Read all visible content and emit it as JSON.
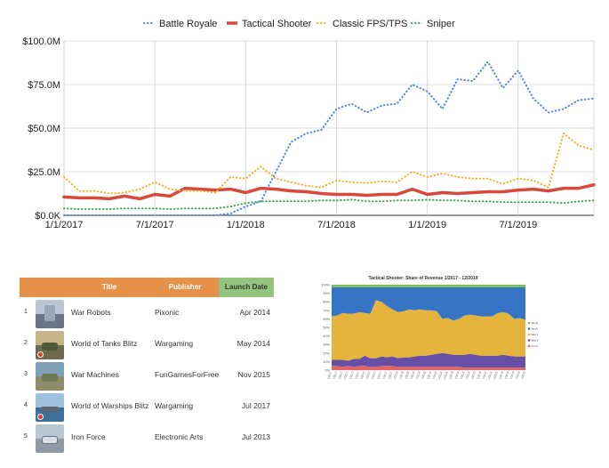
{
  "main_chart_legend": [
    "Battle Royale",
    "Tactical Shooter",
    "Classic FPS/TPS",
    "Sniper"
  ],
  "chart_data": [
    {
      "type": "line",
      "title": "",
      "xlabel": "",
      "ylabel": "",
      "x": [
        "1/1/2017",
        "2/1/2017",
        "3/1/2017",
        "4/1/2017",
        "5/1/2017",
        "6/1/2017",
        "7/1/2017",
        "8/1/2017",
        "9/1/2017",
        "10/1/2017",
        "11/1/2017",
        "12/1/2017",
        "1/1/2018",
        "2/1/2018",
        "3/1/2018",
        "4/1/2018",
        "5/1/2018",
        "6/1/2018",
        "7/1/2018",
        "8/1/2018",
        "9/1/2018",
        "10/1/2018",
        "11/1/2018",
        "12/1/2018",
        "1/1/2019",
        "2/1/2019",
        "3/1/2019",
        "4/1/2019",
        "5/1/2019",
        "6/1/2019",
        "7/1/2019",
        "8/1/2019",
        "9/1/2019",
        "10/1/2019",
        "11/1/2019",
        "12/1/2019"
      ],
      "x_tick_labels": [
        "1/1/2017",
        "7/1/2017",
        "1/1/2018",
        "7/1/2018",
        "1/1/2019",
        "7/1/2019"
      ],
      "y_tick_labels": [
        "$0.0K",
        "$25.0M",
        "$50.0M",
        "$75.0M",
        "$100.0M"
      ],
      "ylim": [
        0,
        100
      ],
      "grid": "vertical",
      "legend_position": "top",
      "series": [
        {
          "name": "Battle Royale",
          "color": "#4a86e8",
          "style": "dotted",
          "values": [
            0,
            0,
            0,
            0,
            0,
            0,
            0,
            0,
            0,
            0,
            0,
            1,
            5,
            8,
            25,
            42,
            47,
            49,
            61,
            64,
            59,
            63,
            64,
            75,
            71,
            61,
            78,
            77,
            88,
            73,
            83,
            67,
            59,
            61,
            66,
            67
          ]
        },
        {
          "name": "Tactical Shooter",
          "color": "#d9483b",
          "style": "solid",
          "values": [
            10.5,
            10,
            10,
            9.5,
            11,
            9.5,
            12,
            11,
            15.5,
            15,
            14.5,
            15,
            13,
            15.5,
            15,
            14,
            13.5,
            12.5,
            12,
            12,
            11.5,
            12,
            12,
            15,
            12,
            13,
            12.5,
            13,
            13.5,
            13.5,
            14.5,
            15,
            14,
            15.5,
            15.5,
            17.5
          ]
        },
        {
          "name": "Classic FPS/TPS",
          "color": "#f6b026",
          "style": "dotted",
          "values": [
            22,
            14,
            14,
            12.5,
            13,
            15,
            19,
            15,
            14,
            14,
            13,
            22,
            21,
            28,
            21,
            19,
            17,
            16,
            20,
            19,
            18.5,
            19.5,
            19,
            25,
            22,
            24,
            22,
            21,
            21,
            18,
            21,
            20,
            16,
            47,
            40,
            37.5
          ]
        },
        {
          "name": "Sniper",
          "color": "#3aa757",
          "style": "dotted",
          "values": [
            4,
            3.5,
            3.5,
            3.5,
            4,
            4,
            4,
            3.5,
            4,
            4,
            4,
            5,
            7,
            8,
            8,
            8,
            8,
            8.5,
            8.5,
            9,
            8,
            8,
            8.5,
            8.5,
            9,
            8.5,
            8.5,
            8,
            8,
            7.5,
            7.5,
            7.5,
            7.5,
            7,
            8,
            8.5
          ]
        }
      ]
    },
    {
      "type": "area",
      "stacked": true,
      "title": "Tactical Shooter: Share of Revenue 1/2017 - 12/2019",
      "y_tick_labels": [
        "0%",
        "10%",
        "20%",
        "30%",
        "40%",
        "50%",
        "60%",
        "70%",
        "80%",
        "90%",
        "100%"
      ],
      "ylim": [
        0,
        100
      ],
      "x": [
        "1/1/2017",
        "2/1/2017",
        "3/1/2017",
        "4/1/2017",
        "5/1/2017",
        "6/1/2017",
        "7/1/2017",
        "8/1/2017",
        "9/1/2017",
        "10/1/2017",
        "11/1/2017",
        "12/1/2017",
        "1/1/2018",
        "2/1/2018",
        "3/1/2018",
        "4/1/2018",
        "5/1/2018",
        "6/1/2018",
        "7/1/2018",
        "8/1/2018",
        "9/1/2018",
        "10/1/2018",
        "11/1/2018",
        "12/1/2018",
        "1/1/2019",
        "2/1/2019",
        "3/1/2019",
        "4/1/2019",
        "5/1/2019",
        "6/1/2019",
        "7/1/2019",
        "8/1/2019",
        "9/1/2019",
        "10/1/2019",
        "11/1/2019",
        "12/1/2019"
      ],
      "legend_position": "right",
      "series": [
        {
          "name": "Iron Force",
          "color": "#e06666",
          "values": [
            5,
            5,
            4,
            5,
            4,
            5,
            5,
            4,
            4,
            5,
            5,
            5,
            4,
            4,
            4,
            4,
            4,
            4,
            4,
            4,
            4,
            4,
            4,
            4,
            3,
            3,
            3,
            3,
            3,
            3,
            3,
            3,
            3,
            3,
            3,
            3
          ]
        },
        {
          "name": "War Machines: 3D Tank Games",
          "color": "#674ea7",
          "values": [
            7,
            7,
            8,
            6,
            9,
            8,
            12,
            10,
            10,
            11,
            10,
            11,
            10,
            11,
            11,
            12,
            13,
            13,
            14,
            15,
            16,
            15,
            14,
            14,
            15,
            16,
            15,
            14,
            14,
            14,
            14,
            15,
            14,
            13,
            13,
            13
          ]
        },
        {
          "name": "War Robots",
          "color": "#e4b43c",
          "values": [
            51,
            52,
            55,
            55,
            53,
            55,
            50,
            52,
            68,
            64,
            60,
            55,
            54,
            54,
            56,
            54,
            54,
            53,
            52,
            50,
            40,
            42,
            40,
            42,
            46,
            46,
            46,
            46,
            46,
            46,
            50,
            50,
            49,
            44,
            45,
            43
          ]
        },
        {
          "name": "World of Tanks Blitz",
          "color": "#3674c6",
          "values": [
            34,
            33,
            30,
            31,
            31,
            29,
            30,
            31,
            15,
            17,
            22,
            26,
            29,
            28,
            26,
            27,
            26,
            27,
            27,
            28,
            37,
            36,
            39,
            37,
            33,
            32,
            33,
            34,
            34,
            34,
            30,
            29,
            31,
            37,
            36,
            38
          ]
        },
        {
          "name": "World of Warships Blitz",
          "color": "#7dbf5a",
          "values": [
            3,
            3,
            3,
            3,
            3,
            3,
            3,
            3,
            3,
            3,
            3,
            3,
            3,
            3,
            3,
            3,
            3,
            3,
            3,
            3,
            3,
            3,
            3,
            3,
            3,
            3,
            3,
            3,
            3,
            3,
            3,
            3,
            3,
            3,
            3,
            3
          ]
        }
      ]
    }
  ],
  "table": {
    "headers": {
      "title": "Title",
      "publisher": "Publisher",
      "launch": "Launch Date"
    },
    "rows": [
      {
        "num": "1",
        "title": "War Robots",
        "publisher": "Pixonic",
        "launch": "Apr 2014"
      },
      {
        "num": "2",
        "title": "World of Tanks Blitz",
        "publisher": "Wargaming",
        "launch": "May 2014"
      },
      {
        "num": "3",
        "title": "War Machines",
        "publisher": "FunGamesForFree",
        "launch": "Nov 2015"
      },
      {
        "num": "4",
        "title": "World of Warships Blitz",
        "publisher": "Wargaming",
        "launch": "Jul 2017"
      },
      {
        "num": "5",
        "title": "Iron Force",
        "publisher": "Electronic Arts",
        "launch": "Jul 2013"
      }
    ]
  }
}
